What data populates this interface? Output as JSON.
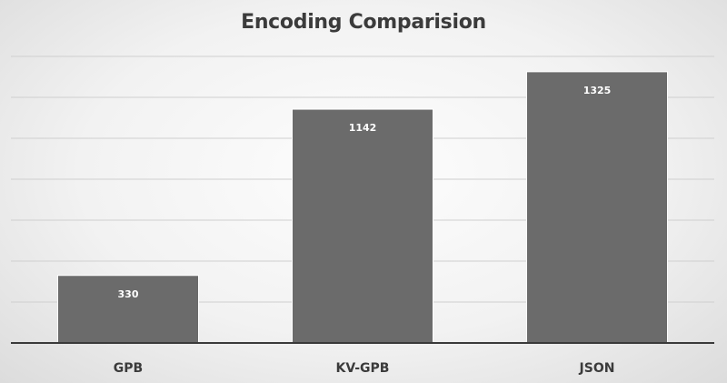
{
  "chart_data": {
    "type": "bar",
    "title": "Encoding Comparision",
    "categories": [
      "GPB",
      "KV-GPB",
      "JSON"
    ],
    "values": [
      330,
      1142,
      1325
    ],
    "ylim": [
      0,
      1400
    ],
    "ytick_step": 200,
    "grid": true,
    "data_labels": true,
    "bar_color": "#6b6b6b",
    "grid_color": "#cfcfcf",
    "axis_color": "#3a3a3a"
  }
}
